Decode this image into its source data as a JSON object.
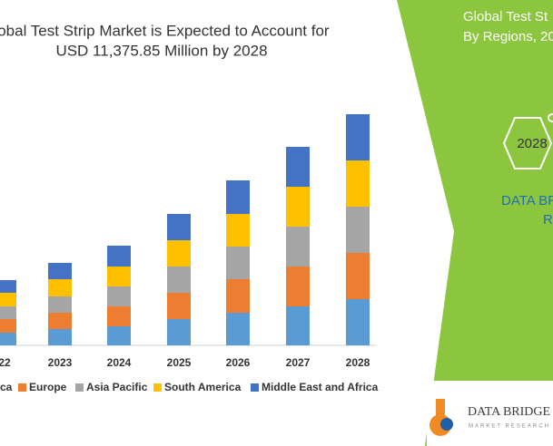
{
  "chart_data": {
    "type": "bar",
    "stacked": true,
    "title": [
      "lobal Test Strip Market is Expected to Account for",
      "USD 11,375.85 Million by 2028"
    ],
    "categories": [
      "22",
      "2023",
      "2024",
      "2025",
      "2026",
      "2027",
      "2028"
    ],
    "series": [
      {
        "name": "ca",
        "color": "#5b9bd5",
        "values": [
          14,
          18,
          21,
          29,
          36,
          43,
          51
        ]
      },
      {
        "name": "Europe",
        "color": "#ed7d31",
        "values": [
          15,
          18,
          22,
          29,
          37,
          44,
          51
        ]
      },
      {
        "name": "Asia Pacific",
        "color": "#a5a5a5",
        "values": [
          14,
          18,
          22,
          29,
          36,
          44,
          51
        ]
      },
      {
        "name": "South America",
        "color": "#ffc000",
        "values": [
          15,
          19,
          22,
          29,
          36,
          44,
          51
        ]
      },
      {
        "name": "Middle East and Africa",
        "color": "#4472c4",
        "values": [
          14,
          18,
          23,
          29,
          37,
          44,
          51
        ]
      }
    ]
  },
  "panel": {
    "title_lines": [
      "Global Test St",
      "By Regions, 20"
    ],
    "hex_label": "2028",
    "brand_lines": [
      "DATA BR",
      "R"
    ]
  },
  "logo": {
    "name": "DATA BRIDGE",
    "tagline": "MARKET RESEARCH"
  }
}
